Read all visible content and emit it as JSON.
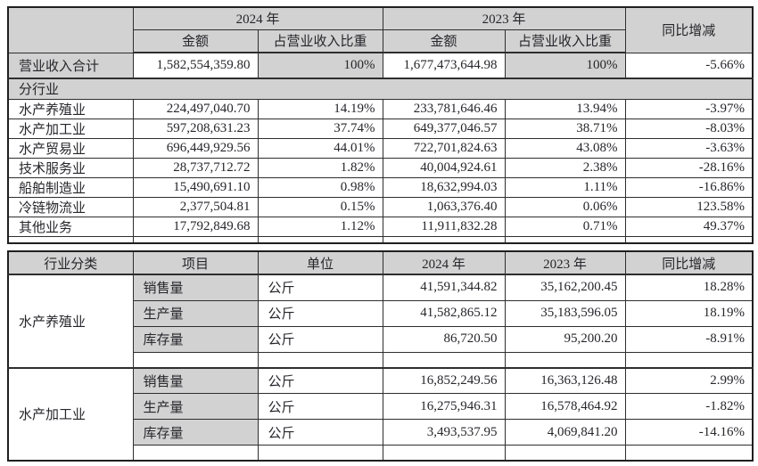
{
  "colors": {
    "header_bg": "#d2d2d2",
    "cell_bg": "#ffffff",
    "border": "#2e2e2e",
    "text": "#26262b"
  },
  "table1": {
    "header": {
      "year2024": "2024 年",
      "year2023": "2023 年",
      "yoy": "同比增减",
      "amount": "金额",
      "share": "占营业收入比重"
    },
    "total_row": {
      "label": "营业收入合计",
      "amount_2024": "1,582,554,359.80",
      "share_2024": "100%",
      "amount_2023": "1,677,473,644.98",
      "share_2023": "100%",
      "yoy": "-5.66%"
    },
    "section_label": "分行业",
    "rows": [
      {
        "label": "水产养殖业",
        "amount_2024": "224,497,040.70",
        "share_2024": "14.19%",
        "amount_2023": "233,781,646.46",
        "share_2023": "13.94%",
        "yoy": "-3.97%"
      },
      {
        "label": "水产加工业",
        "amount_2024": "597,208,631.23",
        "share_2024": "37.74%",
        "amount_2023": "649,377,046.57",
        "share_2023": "38.71%",
        "yoy": "-8.03%"
      },
      {
        "label": "水产贸易业",
        "amount_2024": "696,449,929.56",
        "share_2024": "44.01%",
        "amount_2023": "722,701,824.63",
        "share_2023": "43.08%",
        "yoy": "-3.63%"
      },
      {
        "label": "技术服务业",
        "amount_2024": "28,737,712.72",
        "share_2024": "1.82%",
        "amount_2023": "40,004,924.61",
        "share_2023": "2.38%",
        "yoy": "-28.16%"
      },
      {
        "label": "船舶制造业",
        "amount_2024": "15,490,691.10",
        "share_2024": "0.98%",
        "amount_2023": "18,632,994.03",
        "share_2023": "1.11%",
        "yoy": "-16.86%"
      },
      {
        "label": "冷链物流业",
        "amount_2024": "2,377,504.81",
        "share_2024": "0.15%",
        "amount_2023": "1,063,376.40",
        "share_2023": "0.06%",
        "yoy": "123.58%"
      },
      {
        "label": "其他业务",
        "amount_2024": "17,792,849.68",
        "share_2024": "1.12%",
        "amount_2023": "11,911,832.28",
        "share_2023": "0.71%",
        "yoy": "49.37%"
      }
    ]
  },
  "table2": {
    "header": {
      "industry": "行业分类",
      "item": "项目",
      "unit": "单位",
      "year2024": "2024 年",
      "year2023": "2023 年",
      "yoy": "同比增减"
    },
    "groups": [
      {
        "industry": "水产养殖业",
        "rows": [
          {
            "item": "销售量",
            "unit": "公斤",
            "v2024": "41,591,344.82",
            "v2023": "35,162,200.45",
            "yoy": "18.28%"
          },
          {
            "item": "生产量",
            "unit": "公斤",
            "v2024": "41,582,865.12",
            "v2023": "35,183,596.05",
            "yoy": "18.19%"
          },
          {
            "item": "库存量",
            "unit": "公斤",
            "v2024": "86,720.50",
            "v2023": "95,200.20",
            "yoy": "-8.91%"
          }
        ]
      },
      {
        "industry": "水产加工业",
        "rows": [
          {
            "item": "销售量",
            "unit": "公斤",
            "v2024": "16,852,249.56",
            "v2023": "16,363,126.48",
            "yoy": "2.99%"
          },
          {
            "item": "生产量",
            "unit": "公斤",
            "v2024": "16,275,946.31",
            "v2023": "16,578,464.92",
            "yoy": "-1.82%"
          },
          {
            "item": "库存量",
            "unit": "公斤",
            "v2024": "3,493,537.95",
            "v2023": "4,069,841.20",
            "yoy": "-14.16%"
          }
        ]
      }
    ]
  }
}
